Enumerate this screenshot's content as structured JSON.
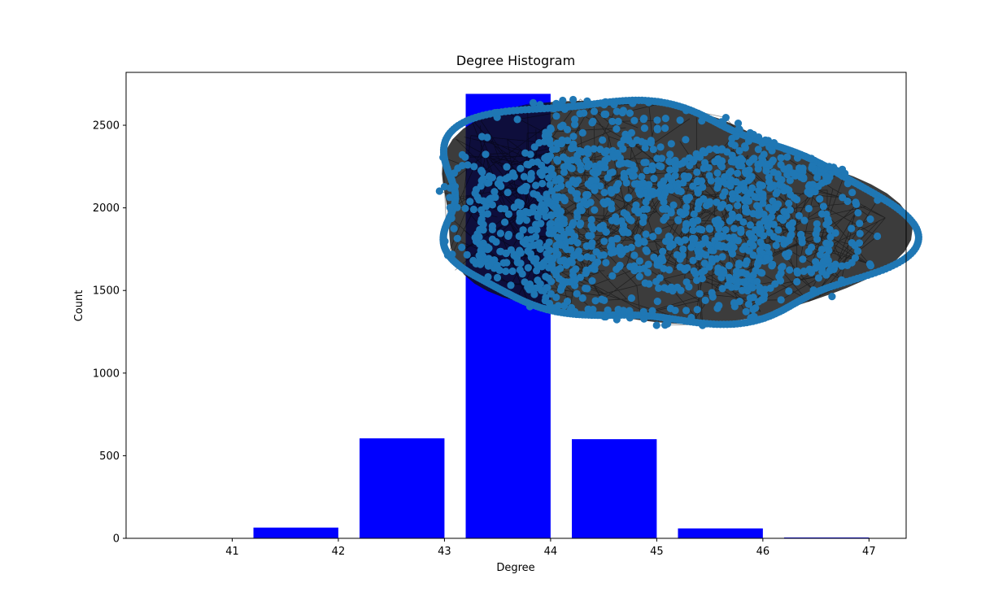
{
  "chart_data": {
    "type": "bar",
    "title": "Degree Histogram",
    "xlabel": "Degree",
    "ylabel": "Count",
    "xlim": [
      40,
      47.35
    ],
    "ylim": [
      0,
      2820
    ],
    "xticks": [
      41,
      42,
      43,
      44,
      45,
      46,
      47
    ],
    "xtick_labels": [
      "41",
      "42",
      "43",
      "44",
      "45",
      "46",
      "47"
    ],
    "yticks": [
      0,
      500,
      1000,
      1500,
      2000,
      2500
    ],
    "ytick_labels": [
      "0",
      "500",
      "1000",
      "1500",
      "2000",
      "2500"
    ],
    "bar_width": 0.8,
    "bars": [
      {
        "left": 41.2,
        "right": 42.0,
        "value": 65
      },
      {
        "left": 42.2,
        "right": 43.0,
        "value": 605
      },
      {
        "left": 43.2,
        "right": 44.0,
        "value": 2690
      },
      {
        "left": 44.2,
        "right": 45.0,
        "value": 600
      },
      {
        "left": 45.2,
        "right": 46.0,
        "value": 60
      },
      {
        "left": 46.2,
        "right": 47.0,
        "value": 5
      }
    ],
    "bar_color": "#0000ff",
    "grid": false,
    "overlay": {
      "type": "network-graph",
      "node_color": "#1f77b4",
      "edge_color": "#000000"
    }
  }
}
